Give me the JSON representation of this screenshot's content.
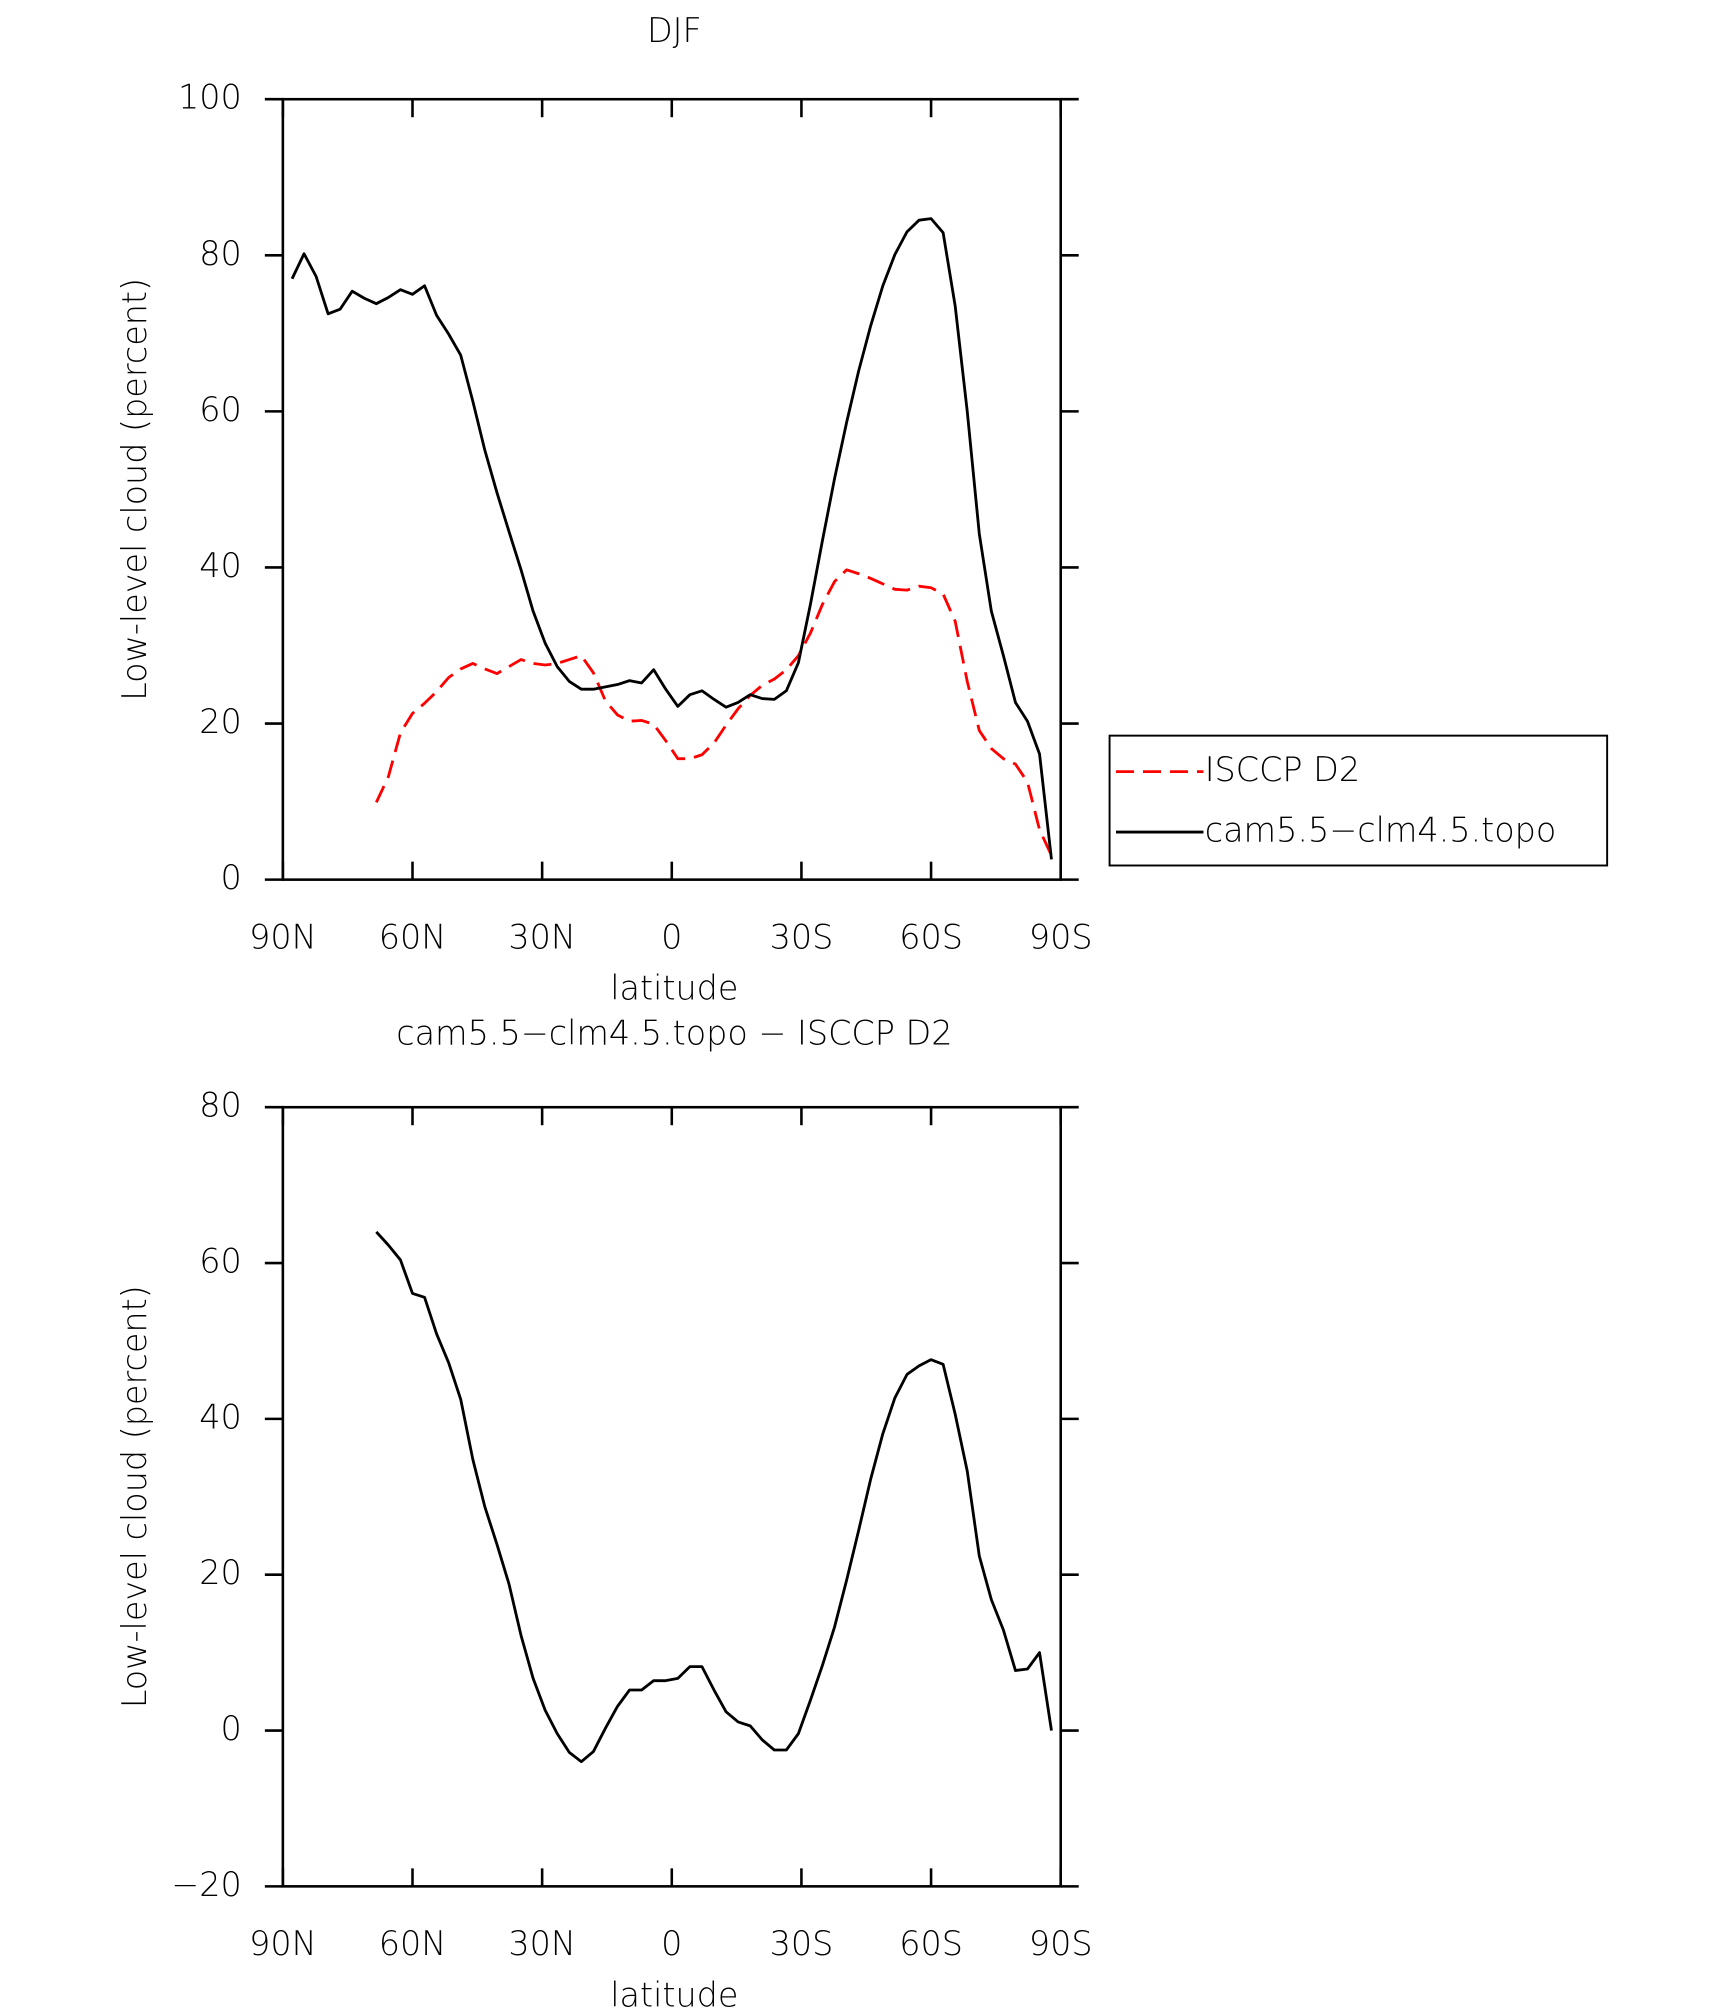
{
  "chart_data": [
    {
      "type": "line",
      "title": "DJF",
      "xlabel": "latitude",
      "ylabel": "Low-level cloud (percent)",
      "x": [
        87.86,
        85.1,
        82.31,
        79.53,
        76.74,
        73.95,
        71.16,
        68.37,
        65.58,
        62.79,
        60.0,
        57.21,
        54.42,
        51.63,
        48.84,
        46.04,
        43.25,
        40.46,
        37.67,
        34.88,
        32.09,
        29.3,
        26.51,
        23.72,
        20.93,
        18.14,
        15.35,
        12.56,
        9.77,
        6.98,
        4.19,
        1.4,
        -1.4,
        -4.19,
        -6.98,
        -9.77,
        -12.56,
        -15.35,
        -18.14,
        -20.93,
        -23.72,
        -26.51,
        -29.3,
        -32.09,
        -34.88,
        -37.67,
        -40.46,
        -43.25,
        -46.04,
        -48.84,
        -51.63,
        -54.42,
        -57.21,
        -60.0,
        -62.79,
        -65.58,
        -68.37,
        -71.16,
        -73.95,
        -76.74,
        -79.53,
        -82.31,
        -85.1,
        -87.86
      ],
      "series": [
        {
          "name": "ISCCP D2",
          "color": "#ff0000",
          "line_style": "dashed",
          "values": [
            null,
            null,
            null,
            null,
            null,
            null,
            null,
            9.9,
            13.2,
            18.8,
            21.3,
            22.6,
            24.1,
            25.9,
            27.0,
            27.7,
            27.0,
            26.4,
            27.3,
            28.2,
            27.7,
            27.5,
            27.7,
            28.2,
            28.7,
            26.5,
            22.9,
            21.1,
            20.3,
            20.4,
            19.9,
            17.8,
            15.5,
            15.5,
            16.0,
            17.5,
            19.8,
            21.9,
            23.6,
            24.9,
            25.7,
            26.9,
            28.7,
            31.6,
            35.3,
            38.2,
            39.7,
            39.2,
            38.6,
            37.9,
            37.2,
            37.1,
            37.6,
            37.4,
            36.6,
            33.1,
            25.4,
            19.1,
            16.8,
            15.5,
            14.8,
            12.5,
            6.4,
            3.1
          ]
        },
        {
          "name": "cam5.5−clm4.5.topo",
          "color": "#000000",
          "line_style": "solid",
          "values": [
            77.0,
            80.2,
            77.3,
            72.5,
            73.1,
            75.4,
            74.5,
            73.8,
            74.6,
            75.6,
            75.0,
            76.1,
            72.3,
            69.9,
            67.2,
            61.3,
            55.0,
            49.6,
            44.6,
            39.7,
            34.4,
            30.3,
            27.3,
            25.4,
            24.4,
            24.4,
            24.7,
            25.0,
            25.5,
            25.2,
            26.9,
            24.4,
            22.2,
            23.7,
            24.2,
            23.1,
            22.1,
            22.7,
            23.7,
            23.2,
            23.1,
            24.2,
            27.8,
            35.3,
            43.5,
            51.4,
            58.6,
            65.2,
            71.0,
            76.1,
            80.1,
            83.0,
            84.5,
            84.7,
            82.9,
            73.5,
            60.0,
            44.3,
            34.4,
            28.7,
            22.7,
            20.3,
            16.1,
            2.6
          ]
        }
      ],
      "xlim": [
        90,
        -90
      ],
      "xticks": [
        {
          "value": 90,
          "label": "90N"
        },
        {
          "value": 60,
          "label": "60N"
        },
        {
          "value": 30,
          "label": "30N"
        },
        0,
        {
          "value": -30,
          "label": "30S"
        },
        {
          "value": -60,
          "label": "60S"
        },
        {
          "value": -90,
          "label": "90S"
        }
      ],
      "ylim": [
        0,
        100
      ],
      "yticks": [
        0,
        20,
        40,
        60,
        80,
        100
      ],
      "legend": "right"
    },
    {
      "type": "line",
      "title": "cam5.5−clm4.5.topo − ISCCP D2",
      "xlabel": "latitude",
      "ylabel": "Low-level cloud (percent)",
      "x": [
        68.37,
        65.58,
        62.79,
        60.0,
        57.21,
        54.42,
        51.63,
        48.84,
        46.04,
        43.25,
        40.46,
        37.67,
        34.88,
        32.09,
        29.3,
        26.51,
        23.72,
        20.93,
        18.14,
        15.35,
        12.56,
        9.77,
        6.98,
        4.19,
        1.4,
        -1.4,
        -4.19,
        -6.98,
        -9.77,
        -12.56,
        -15.35,
        -18.14,
        -20.93,
        -23.72,
        -26.51,
        -29.3,
        -32.09,
        -34.88,
        -37.67,
        -40.46,
        -43.25,
        -46.04,
        -48.84,
        -51.63,
        -54.42,
        -57.21,
        -60.0,
        -62.79,
        -65.58,
        -68.37,
        -71.16,
        -73.95,
        -76.74,
        -79.53,
        -82.31,
        -85.1,
        -87.86
      ],
      "series": [
        {
          "color": "#000000",
          "line_style": "solid",
          "values": [
            64.0,
            62.3,
            60.4,
            56.1,
            55.6,
            50.9,
            47.2,
            42.5,
            34.8,
            28.7,
            23.9,
            18.8,
            12.2,
            6.7,
            2.6,
            -0.4,
            -2.8,
            -4.0,
            -2.7,
            0.3,
            3.1,
            5.2,
            5.2,
            6.4,
            6.4,
            6.7,
            8.2,
            8.2,
            5.2,
            2.4,
            1.1,
            0.6,
            -1.2,
            -2.5,
            -2.5,
            -0.4,
            3.9,
            8.4,
            13.3,
            19.3,
            25.7,
            32.3,
            38.1,
            42.7,
            45.7,
            46.8,
            47.6,
            47.0,
            40.6,
            33.3,
            22.4,
            16.8,
            12.9,
            7.7,
            7.9,
            10.0,
            0.0
          ]
        }
      ],
      "xlim": [
        90,
        -90
      ],
      "xticks": [
        {
          "value": 90,
          "label": "90N"
        },
        {
          "value": 60,
          "label": "60N"
        },
        {
          "value": 30,
          "label": "30N"
        },
        0,
        {
          "value": -30,
          "label": "30S"
        },
        {
          "value": -60,
          "label": "60S"
        },
        {
          "value": -90,
          "label": "90S"
        }
      ],
      "ylim": [
        -20,
        80
      ],
      "yticks": [
        {
          "value": -20,
          "label": "−20"
        },
        0,
        20,
        40,
        60,
        80
      ]
    }
  ]
}
